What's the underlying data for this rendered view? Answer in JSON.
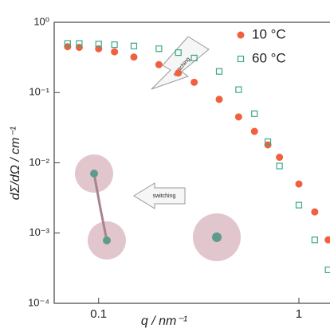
{
  "chart_data": {
    "type": "scatter",
    "log_x": true,
    "log_y": true,
    "x_label": "q / nm⁻¹",
    "y_label": "dΣ/dΩ / cm⁻¹",
    "xlim": [
      0.06,
      1.43
    ],
    "xticks": [
      0.1,
      1
    ],
    "ylim": [
      0.0001,
      1
    ],
    "yticks": [
      {
        "value": 0.0001,
        "label": "10⁻⁴"
      },
      {
        "value": 0.001,
        "label": "10⁻³"
      },
      {
        "value": 0.01,
        "label": "10⁻²"
      },
      {
        "value": 0.1,
        "label": "10⁻¹"
      },
      {
        "value": 1,
        "label": "10⁰"
      }
    ],
    "annotations": [
      "switching",
      "switching"
    ],
    "legend": "top-right",
    "series": [
      {
        "name": "10 °C",
        "color": "#f0603e",
        "marker": "filled-circle",
        "x": [
          0.07,
          0.08,
          0.1,
          0.12,
          0.15,
          0.2,
          0.25,
          0.3,
          0.4,
          0.5,
          0.6,
          0.7,
          0.8,
          1.0,
          1.2,
          1.4
        ],
        "values": [
          0.45,
          0.44,
          0.42,
          0.38,
          0.32,
          0.25,
          0.19,
          0.14,
          0.08,
          0.045,
          0.028,
          0.018,
          0.012,
          0.005,
          0.002,
          0.0008
        ]
      },
      {
        "name": "60 °C",
        "color": "#3aa888",
        "marker": "open-square",
        "x": [
          0.07,
          0.08,
          0.1,
          0.12,
          0.15,
          0.2,
          0.25,
          0.3,
          0.4,
          0.5,
          0.6,
          0.7,
          0.8,
          1.0,
          1.2,
          1.4
        ],
        "values": [
          0.5,
          0.5,
          0.49,
          0.48,
          0.46,
          0.42,
          0.37,
          0.31,
          0.2,
          0.11,
          0.05,
          0.02,
          0.009,
          0.0025,
          0.0008,
          0.0003
        ]
      }
    ]
  }
}
